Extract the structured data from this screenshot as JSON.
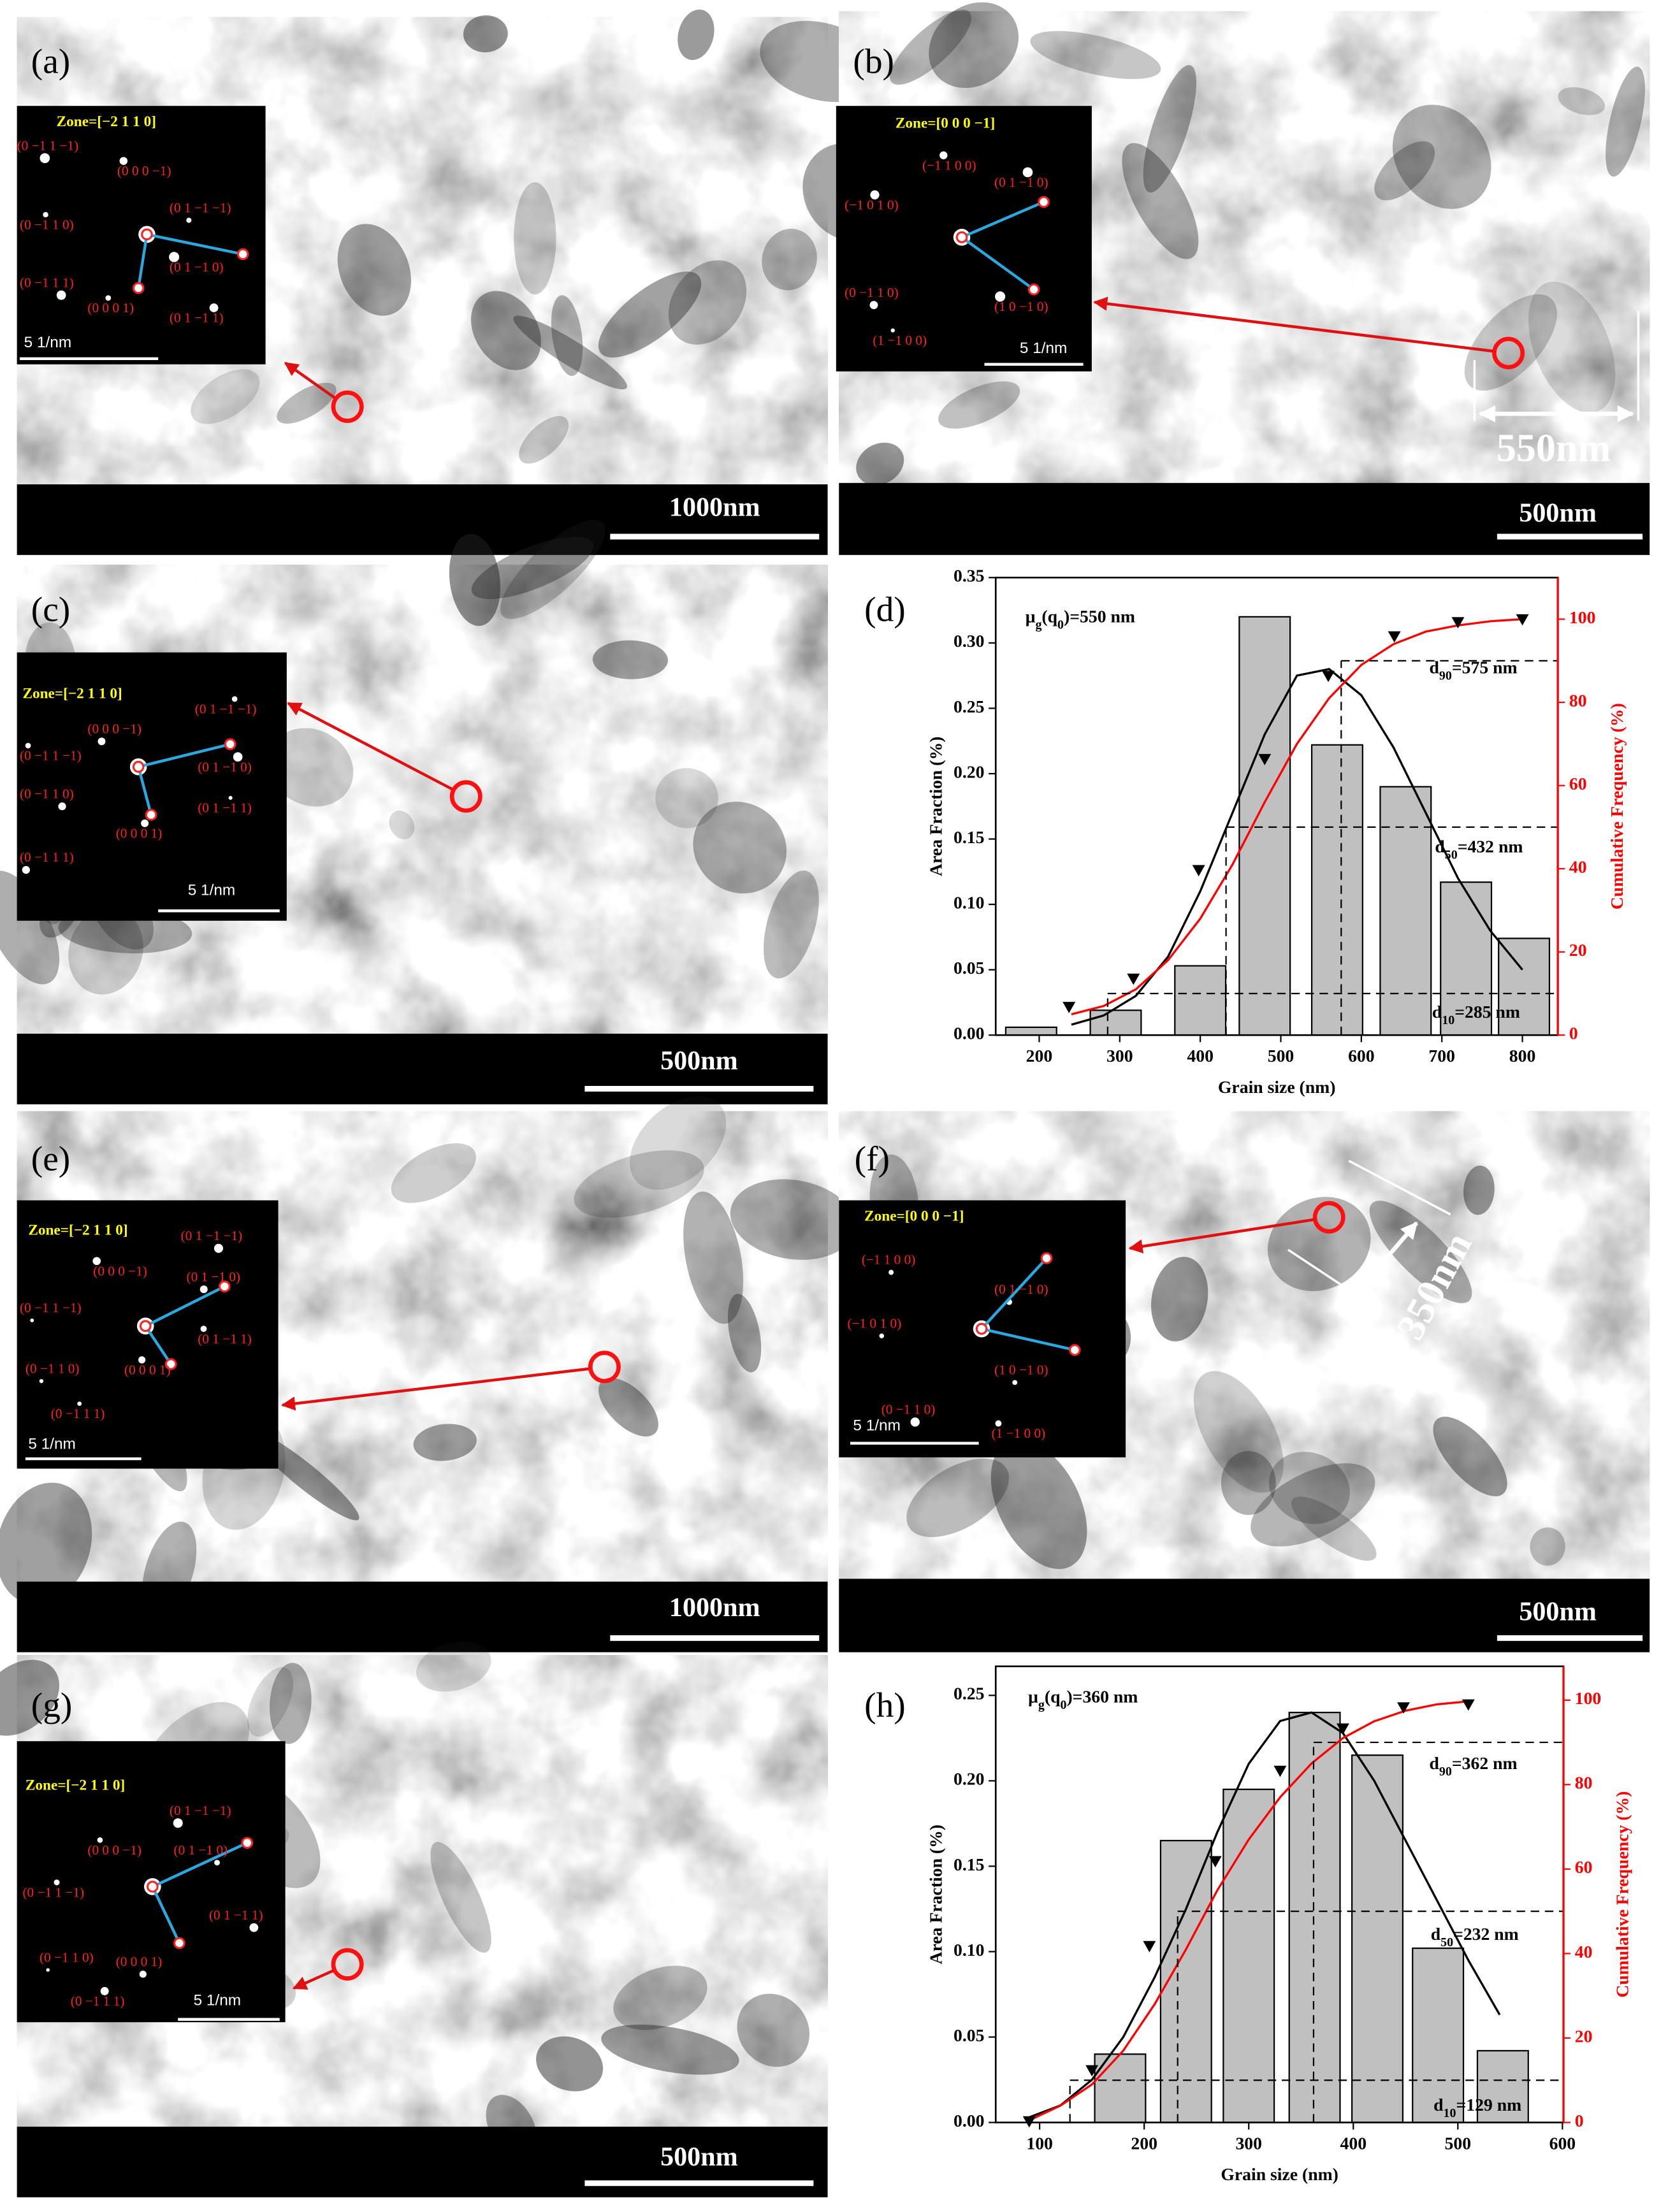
{
  "panels": [
    {
      "label": "(a)",
      "zone": "Zone=[−2 1 1 0]",
      "spots": [
        "(0 −1 1 −1)",
        "(0 0 0 −1)",
        "(0 −1 1 0)",
        "(0 1 −1 −1)",
        "(0 1 −1 0)",
        "(0 −1 1 1)",
        "(0 0 0 1)",
        "(0 1 −1 1)"
      ],
      "inset_scale": "5  1/nm",
      "scale": "1000nm"
    },
    {
      "label": "(b)",
      "zone": "Zone=[0 0 0 −1]",
      "spots": [
        "(−1 1 0 0)",
        "(0 1 −1 0)",
        "(−1 0 1 0)",
        "(0 −1 1 0)",
        "(1 0 −1 0)",
        "(1 −1 0 0)"
      ],
      "inset_scale": "5  1/nm",
      "scale": "500nm",
      "dimension": "550nm"
    },
    {
      "label": "(c)",
      "zone": "Zone=[−2 1 1 0]",
      "spots": [
        "(0 1 −1 −1)",
        "(0 0 0 −1)",
        "(0 −1 1 −1)",
        "(0 1 −1 0)",
        "(0 −1 1 0)",
        "(0 1 −1 1)",
        "(0 0 0 1)",
        "(0 −1 1 1)"
      ],
      "inset_scale": "5  1/nm",
      "scale": "500nm"
    },
    {
      "label": "(e)",
      "zone": "Zone=[−2 1 1 0]",
      "spots": [
        "(0 1 −1 −1)",
        "(0 0 0 −1)",
        "(0 1 −1 0)",
        "(0 −1 1 −1)",
        "(0 1 −1 1)",
        "(0 −1 1 0)",
        "(0 0 0 1)",
        "(0 −1 1 1)"
      ],
      "inset_scale": "5  1/nm",
      "scale": "1000nm"
    },
    {
      "label": "(f)",
      "zone": "Zone=[0 0 0 −1]",
      "spots": [
        "(−1 1 0 0)",
        "(0 1 −1 0)",
        "(−1 0 1 0)",
        "(1 0 −1 0)",
        "(0 −1 1 0)",
        "(1 −1 0 0)"
      ],
      "inset_scale": "5  1/nm",
      "scale": "500nm",
      "dimension": "350nm"
    },
    {
      "label": "(g)",
      "zone": "Zone=[−2 1 1 0]",
      "spots": [
        "(0 1 −1 −1)",
        "(0 0 0 −1)",
        "(0 1 −1 0)",
        "(0 −1 1 −1)",
        "(0 1 −1 1)",
        "(0 −1 1 0)",
        "(0 0 0 1)",
        "(0 −1 1 1)"
      ],
      "inset_scale": "5  1/nm",
      "scale": "500nm"
    }
  ],
  "chart_data": [
    {
      "type": "combo",
      "label": "(d)",
      "x_label": "Grain size (nm)",
      "y_label": "Area Fraction (%)",
      "y2_label": "Cumulative Frequency (%)",
      "y2color": "#ff0000",
      "xlim": [
        146,
        844
      ],
      "xticks": [
        200,
        300,
        400,
        500,
        600,
        700,
        800
      ],
      "ylim": [
        0,
        0.35
      ],
      "yticks": [
        {
          "value": 0,
          "label": "0.00"
        },
        {
          "value": 0.05,
          "label": "0.05"
        },
        {
          "value": 0.1,
          "label": "0.10"
        },
        {
          "value": 0.15,
          "label": "0.15"
        },
        {
          "value": 0.2,
          "label": "0.20"
        },
        {
          "value": 0.25,
          "label": "0.25"
        },
        {
          "value": 0.3,
          "label": "0.30"
        },
        {
          "value": 0.35,
          "label": "0.35"
        }
      ],
      "y2lim": [
        0,
        110
      ],
      "y2ticks": [
        0,
        20,
        40,
        60,
        80,
        100
      ],
      "mean_label": [
        "μ",
        "g",
        "(q",
        "0",
        ")=550 nm"
      ],
      "percentiles": [
        {
          "p": 90,
          "d": 575,
          "label": [
            "d",
            "90",
            "=575  nm"
          ]
        },
        {
          "p": 50,
          "d": 432,
          "label": [
            "d",
            "50",
            "=432  nm"
          ]
        },
        {
          "p": 10,
          "d": 285,
          "label": [
            "d",
            "10",
            "=285  nm"
          ]
        }
      ],
      "series": [
        {
          "kind": "bar",
          "color": "#c0c0c0",
          "x": [
            190,
            295,
            400,
            480,
            570,
            655,
            730,
            802
          ],
          "values": [
            0.006,
            0.019,
            0.053,
            0.32,
            0.222,
            0.19,
            0.117,
            0.074
          ]
        },
        {
          "kind": "line",
          "color": "#000000",
          "x": [
            240,
            280,
            320,
            360,
            400,
            440,
            480,
            520,
            560,
            600,
            640,
            680,
            720,
            760,
            800
          ],
          "values": [
            0.008,
            0.015,
            0.03,
            0.06,
            0.11,
            0.17,
            0.23,
            0.275,
            0.28,
            0.26,
            0.22,
            0.17,
            0.12,
            0.08,
            0.05
          ]
        },
        {
          "kind": "line",
          "axis": "y2",
          "color": "#ff0000",
          "x": [
            240,
            280,
            320,
            360,
            400,
            440,
            480,
            520,
            560,
            600,
            640,
            680,
            720,
            760,
            800
          ],
          "values": [
            5,
            7,
            11,
            18,
            28,
            41,
            56,
            70,
            81,
            89,
            94,
            97,
            98.5,
            99.5,
            100
          ]
        },
        {
          "kind": "scatter",
          "axis": "y2",
          "color": "#000000",
          "x": [
            237,
            317,
            398,
            480,
            559,
            641,
            720,
            800
          ],
          "values": [
            6.8,
            13.6,
            39.7,
            66.4,
            86.4,
            95.9,
            99.3,
            100
          ]
        }
      ]
    },
    {
      "type": "combo",
      "label": "(h)",
      "x_label": "Grain size (nm)",
      "y_label": "Area Fraction (%)",
      "y2_label": "Cumulative Frequency (%)",
      "y2color": "#ff0000",
      "xlim": [
        58,
        601
      ],
      "xticks": [
        100,
        200,
        300,
        400,
        500,
        600
      ],
      "ylim": [
        0,
        0.267
      ],
      "yticks": [
        {
          "value": 0,
          "label": "0.00"
        },
        {
          "value": 0.05,
          "label": "0.05"
        },
        {
          "value": 0.1,
          "label": "0.10"
        },
        {
          "value": 0.15,
          "label": "0.15"
        },
        {
          "value": 0.2,
          "label": "0.20"
        },
        {
          "value": 0.25,
          "label": "0.25"
        }
      ],
      "y2lim": [
        0,
        108
      ],
      "y2ticks": [
        0,
        20,
        40,
        60,
        80,
        100
      ],
      "mean_label": [
        "μ",
        "g",
        "(q",
        "0",
        ")=360 nm"
      ],
      "percentiles": [
        {
          "p": 90,
          "d": 362,
          "label": [
            "d",
            "90",
            "=362  nm"
          ]
        },
        {
          "p": 50,
          "d": 232,
          "label": [
            "d",
            "50",
            "=232  nm"
          ]
        },
        {
          "p": 10,
          "d": 129,
          "label": [
            "d",
            "10",
            "=129  nm"
          ]
        }
      ],
      "series": [
        {
          "kind": "bar",
          "color": "#c0c0c0",
          "x": [
            177,
            240,
            300,
            363,
            423,
            481,
            543
          ],
          "values": [
            0.04,
            0.165,
            0.195,
            0.24,
            0.215,
            0.102,
            0.042
          ]
        },
        {
          "kind": "line",
          "color": "#000000",
          "x": [
            90,
            120,
            150,
            180,
            210,
            240,
            270,
            300,
            330,
            360,
            390,
            420,
            450,
            480,
            510,
            540
          ],
          "values": [
            0.003,
            0.01,
            0.025,
            0.05,
            0.085,
            0.125,
            0.17,
            0.21,
            0.235,
            0.24,
            0.228,
            0.2,
            0.165,
            0.13,
            0.095,
            0.063
          ]
        },
        {
          "kind": "line",
          "axis": "y2",
          "color": "#ff0000",
          "x": [
            90,
            120,
            150,
            180,
            210,
            240,
            270,
            300,
            330,
            360,
            390,
            420,
            450,
            480,
            510
          ],
          "values": [
            0.5,
            4,
            9,
            17,
            28,
            41,
            55,
            67,
            77,
            85,
            91,
            95,
            97.5,
            99,
            99.7
          ]
        },
        {
          "kind": "scatter",
          "axis": "y2",
          "color": "#000000",
          "x": [
            90,
            150,
            205,
            268,
            330,
            390,
            448,
            510
          ],
          "values": [
            0.3,
            12.4,
            41.8,
            61.9,
            83.3,
            93.3,
            98.3,
            99
          ]
        }
      ]
    }
  ]
}
